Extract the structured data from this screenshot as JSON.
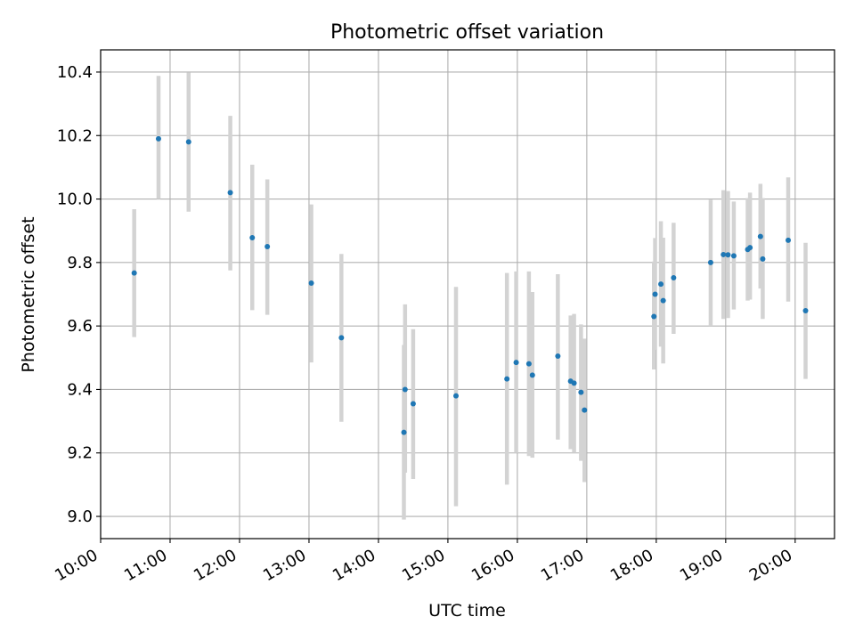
{
  "chart_data": {
    "type": "scatter",
    "title": "Photometric offset variation",
    "xlabel": "UTC time",
    "ylabel": "Photometric offset",
    "x_axis_kind": "time",
    "x_ticks": [
      "10:00",
      "11:00",
      "12:00",
      "13:00",
      "14:00",
      "15:00",
      "16:00",
      "17:00",
      "18:00",
      "19:00",
      "20:00"
    ],
    "xlim": [
      "10:00",
      "20:34"
    ],
    "y_ticks": [
      "9.0",
      "9.2",
      "9.4",
      "9.6",
      "9.8",
      "10.0",
      "10.2",
      "10.4"
    ],
    "ylim": [
      8.93,
      10.47
    ],
    "grid": true,
    "colors": {
      "point": "#1f77b4",
      "errorbar": "#d3d3d3",
      "grid": "#b0b0b0"
    },
    "series": [
      {
        "points": [
          {
            "x": "10:29",
            "y": 9.767,
            "lo": 9.565,
            "hi": 9.968
          },
          {
            "x": "10:50",
            "y": 10.19,
            "lo": 10.0,
            "hi": 10.388
          },
          {
            "x": "11:16",
            "y": 10.18,
            "lo": 9.96,
            "hi": 10.398
          },
          {
            "x": "11:52",
            "y": 10.02,
            "lo": 9.775,
            "hi": 10.262
          },
          {
            "x": "12:11",
            "y": 9.878,
            "lo": 9.65,
            "hi": 10.108
          },
          {
            "x": "12:24",
            "y": 9.85,
            "lo": 9.635,
            "hi": 10.062
          },
          {
            "x": "13:02",
            "y": 9.735,
            "lo": 9.485,
            "hi": 9.983
          },
          {
            "x": "13:28",
            "y": 9.563,
            "lo": 9.298,
            "hi": 9.827
          },
          {
            "x": "14:22",
            "y": 9.265,
            "lo": 8.99,
            "hi": 9.54
          },
          {
            "x": "14:23",
            "y": 9.4,
            "lo": 9.138,
            "hi": 9.668
          },
          {
            "x": "14:30",
            "y": 9.355,
            "lo": 9.118,
            "hi": 9.59
          },
          {
            "x": "15:07",
            "y": 9.38,
            "lo": 9.032,
            "hi": 9.723
          },
          {
            "x": "15:51",
            "y": 9.433,
            "lo": 9.1,
            "hi": 9.767
          },
          {
            "x": "15:59",
            "y": 9.485,
            "lo": 9.2,
            "hi": 9.772
          },
          {
            "x": "16:10",
            "y": 9.481,
            "lo": 9.19,
            "hi": 9.772
          },
          {
            "x": "16:13",
            "y": 9.445,
            "lo": 9.185,
            "hi": 9.707
          },
          {
            "x": "16:35",
            "y": 9.505,
            "lo": 9.242,
            "hi": 9.763
          },
          {
            "x": "16:46",
            "y": 9.426,
            "lo": 9.212,
            "hi": 9.633
          },
          {
            "x": "16:49",
            "y": 9.42,
            "lo": 9.2,
            "hi": 9.638
          },
          {
            "x": "16:55",
            "y": 9.391,
            "lo": 9.175,
            "hi": 9.605
          },
          {
            "x": "16:58",
            "y": 9.335,
            "lo": 9.108,
            "hi": 9.56
          },
          {
            "x": "17:58",
            "y": 9.63,
            "lo": 9.463,
            "hi": 9.803
          },
          {
            "x": "17:59",
            "y": 9.7,
            "lo": 9.525,
            "hi": 9.877
          },
          {
            "x": "18:04",
            "y": 9.732,
            "lo": 9.535,
            "hi": 9.93
          },
          {
            "x": "18:06",
            "y": 9.68,
            "lo": 9.482,
            "hi": 9.878
          },
          {
            "x": "18:15",
            "y": 9.752,
            "lo": 9.575,
            "hi": 9.925
          },
          {
            "x": "18:47",
            "y": 9.8,
            "lo": 9.6,
            "hi": 9.998
          },
          {
            "x": "18:58",
            "y": 9.825,
            "lo": 9.622,
            "hi": 10.028
          },
          {
            "x": "19:02",
            "y": 9.824,
            "lo": 9.625,
            "hi": 10.025
          },
          {
            "x": "19:07",
            "y": 9.821,
            "lo": 9.652,
            "hi": 9.992
          },
          {
            "x": "19:19",
            "y": 9.841,
            "lo": 9.68,
            "hi": 10.003
          },
          {
            "x": "19:21",
            "y": 9.847,
            "lo": 9.683,
            "hi": 10.02
          },
          {
            "x": "19:30",
            "y": 9.882,
            "lo": 9.718,
            "hi": 10.048
          },
          {
            "x": "19:32",
            "y": 9.811,
            "lo": 9.622,
            "hi": 10.003
          },
          {
            "x": "19:54",
            "y": 9.87,
            "lo": 9.677,
            "hi": 10.068
          },
          {
            "x": "20:09",
            "y": 9.648,
            "lo": 9.433,
            "hi": 9.862
          }
        ]
      }
    ]
  }
}
